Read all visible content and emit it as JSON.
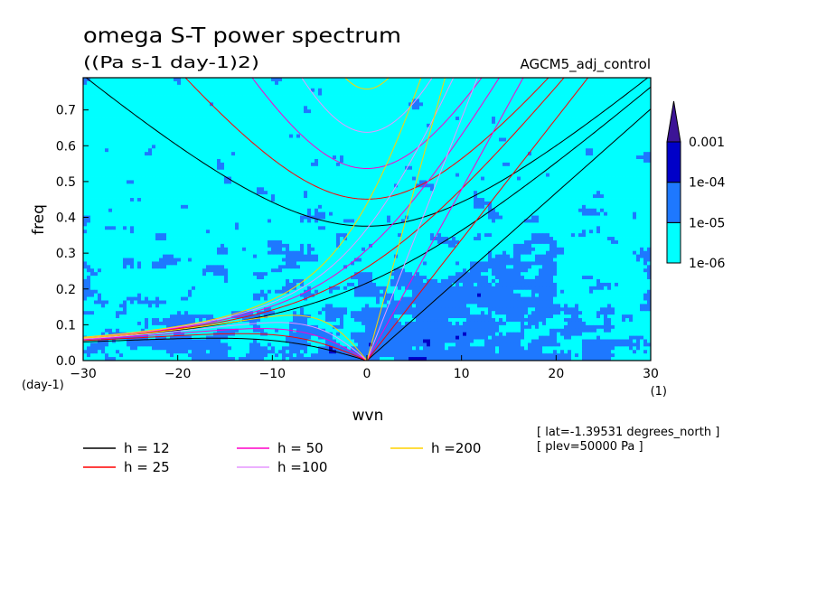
{
  "chart_data": {
    "type": "heatmap",
    "title": "omega S-T power spectrum",
    "subtitle": "((Pa s-1 day-1)2)",
    "experiment": "AGCM5_adj_control",
    "xlabel": "wvn",
    "ylabel": "freq",
    "x_unit": "(1)",
    "y_unit": "(day-1)",
    "xlim": [
      -30,
      30
    ],
    "ylim": [
      0,
      0.79
    ],
    "xticks": [
      "−30",
      "−20",
      "−10",
      "0",
      "10",
      "20",
      "30"
    ],
    "xtick_values": [
      -30,
      -20,
      -10,
      0,
      10,
      20,
      30
    ],
    "yticks": [
      "0.0",
      "0.1",
      "0.2",
      "0.3",
      "0.4",
      "0.5",
      "0.6",
      "0.7"
    ],
    "ytick_values": [
      0,
      0.1,
      0.2,
      0.3,
      0.4,
      0.5,
      0.6,
      0.7
    ],
    "colorbar": {
      "labels": [
        "1e-06",
        "1e-05",
        "1e-04",
        "0.001"
      ],
      "bins": [
        {
          "from": 1e-06,
          "to": 1e-05,
          "color": "#00ffff"
        },
        {
          "from": 1e-05,
          "to": 0.0001,
          "color": "#1e78ff"
        },
        {
          "from": 0.0001,
          "to": 0.001,
          "color": "#0000c8"
        },
        {
          "from": 0.001,
          "to": null,
          "color": "#3c1496"
        }
      ],
      "below_color": "#ffffff"
    },
    "dispersion_curves": [
      {
        "name": "h = 12",
        "h": 12,
        "color": "#000000"
      },
      {
        "name": "h = 25",
        "h": 25,
        "color": "#ff0000"
      },
      {
        "name": "h = 50",
        "h": 50,
        "color": "#ff00c8"
      },
      {
        "name": "h =100",
        "h": 100,
        "color": "#e696ff"
      },
      {
        "name": "h =200",
        "h": 200,
        "color": "#ffd200"
      }
    ],
    "info": [
      "[ lat=-1.39531 degrees_north ]",
      "[ plev=50000 Pa ]"
    ]
  }
}
